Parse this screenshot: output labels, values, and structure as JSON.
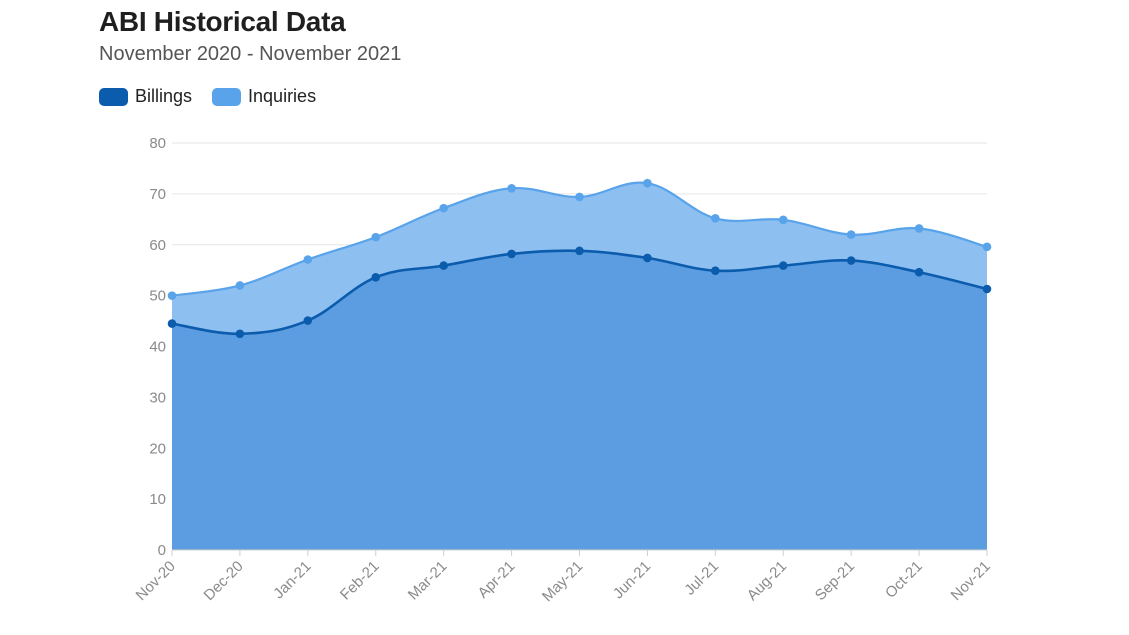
{
  "chart_data": {
    "type": "area",
    "title": "ABI Historical Data",
    "subtitle": "November 2020 - November 2021",
    "xlabel": "",
    "ylabel": "",
    "categories": [
      "Nov-20",
      "Dec-20",
      "Jan-21",
      "Feb-21",
      "Mar-21",
      "Apr-21",
      "May-21",
      "Jun-21",
      "Jul-21",
      "Aug-21",
      "Sep-21",
      "Oct-21",
      "Nov-21"
    ],
    "series": [
      {
        "name": "Billings",
        "color": "#0b5cad",
        "fill": "#5b9de0",
        "values": [
          44.5,
          42.5,
          45.1,
          53.6,
          55.9,
          58.2,
          58.8,
          57.4,
          54.9,
          55.9,
          56.9,
          54.6,
          51.3
        ]
      },
      {
        "name": "Inquiries",
        "color": "#58a3ea",
        "fill": "#8dbff0",
        "values": [
          50.0,
          52.0,
          57.1,
          61.5,
          67.2,
          71.1,
          69.4,
          72.1,
          65.2,
          64.9,
          62.0,
          63.2,
          59.6
        ]
      }
    ],
    "yticks": [
      0,
      10,
      20,
      30,
      40,
      50,
      60,
      70,
      80
    ],
    "ylim": [
      0,
      80
    ],
    "grid": true,
    "legend_position": "top-left"
  }
}
